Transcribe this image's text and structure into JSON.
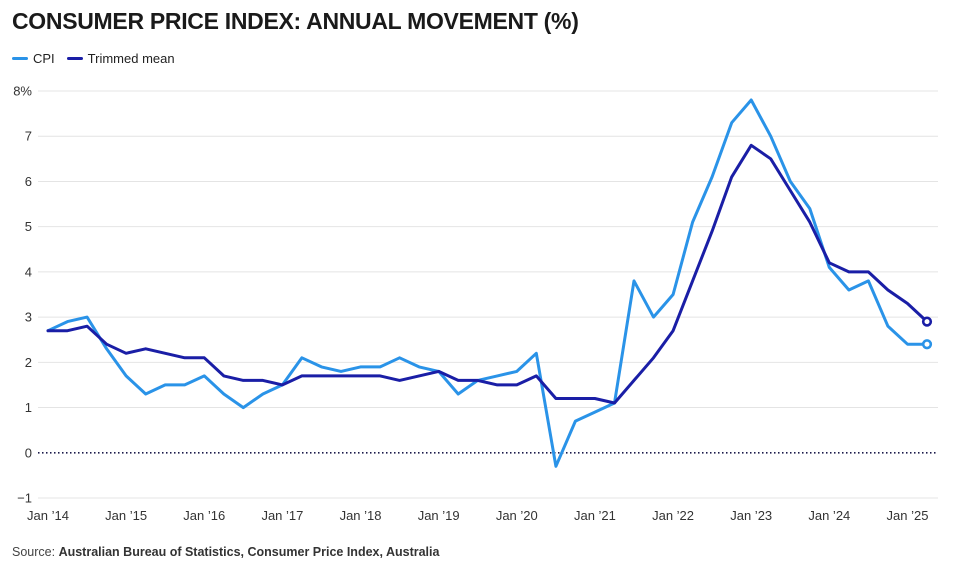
{
  "title": "CONSUMER PRICE INDEX: ANNUAL MOVEMENT (%)",
  "source": {
    "prefix": "Source: ",
    "text": "Australian Bureau of Statistics, Consumer Price Index, Australia"
  },
  "chart_data": {
    "type": "line",
    "title": "CONSUMER PRICE INDEX: ANNUAL MOVEMENT (%)",
    "xlabel": "",
    "ylabel": "",
    "ylim": [
      -1,
      8
    ],
    "y_ticks": [
      -1,
      0,
      1,
      2,
      3,
      4,
      5,
      6,
      7,
      8
    ],
    "y_tick_labels": [
      "−1",
      "0",
      "1",
      "2",
      "3",
      "4",
      "5",
      "6",
      "7",
      "8%"
    ],
    "x_tick_labels": [
      "Jan ’14",
      "Jan ’15",
      "Jan ’16",
      "Jan ’17",
      "Jan ’18",
      "Jan ’19",
      "Jan ’20",
      "Jan ’21",
      "Jan ’22",
      "Jan ’23",
      "Jan ’24",
      "Jan ’25"
    ],
    "x_tick_positions": [
      0,
      4,
      8,
      12,
      16,
      20,
      24,
      28,
      32,
      36,
      40,
      44
    ],
    "x_start": "Dec ’13 quarter",
    "x_end": "Dec ’24 quarter",
    "grid": true,
    "zero_line": "dotted",
    "legend": "top-left",
    "series": [
      {
        "name": "CPI",
        "color": "#2a93e8",
        "values": [
          2.7,
          2.9,
          3.0,
          2.3,
          1.7,
          1.3,
          1.5,
          1.5,
          1.7,
          1.3,
          1.0,
          1.3,
          1.5,
          2.1,
          1.9,
          1.8,
          1.9,
          1.9,
          2.1,
          1.9,
          1.8,
          1.3,
          1.6,
          1.7,
          1.8,
          2.2,
          -0.3,
          0.7,
          0.9,
          1.1,
          3.8,
          3.0,
          3.5,
          5.1,
          6.1,
          7.3,
          7.8,
          7.0,
          6.0,
          5.4,
          4.1,
          3.6,
          3.8,
          2.8,
          2.4,
          2.4
        ]
      },
      {
        "name": "Trimmed mean",
        "color": "#1a1ea6",
        "values": [
          2.7,
          2.7,
          2.8,
          2.4,
          2.2,
          2.3,
          2.2,
          2.1,
          2.1,
          1.7,
          1.6,
          1.6,
          1.5,
          1.7,
          1.7,
          1.7,
          1.7,
          1.7,
          1.6,
          1.7,
          1.8,
          1.6,
          1.6,
          1.5,
          1.5,
          1.7,
          1.2,
          1.2,
          1.2,
          1.1,
          1.6,
          2.1,
          2.7,
          3.8,
          4.9,
          6.1,
          6.8,
          6.5,
          5.8,
          5.1,
          4.2,
          4.0,
          4.0,
          3.6,
          3.3,
          2.9
        ]
      }
    ]
  }
}
